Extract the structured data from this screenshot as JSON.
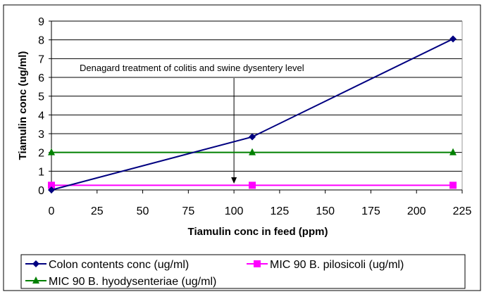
{
  "chart_data": {
    "type": "line",
    "title": "",
    "xlabel": "Tiamulin conc in feed (ppm)",
    "ylabel": "Tiamulin conc (ug/ml)",
    "xlim": [
      0,
      225
    ],
    "ylim": [
      0,
      9
    ],
    "xticks": [
      0,
      25,
      50,
      75,
      100,
      125,
      150,
      175,
      200,
      225
    ],
    "yticks": [
      0,
      1,
      2,
      3,
      4,
      5,
      6,
      7,
      8,
      9
    ],
    "grid": "horizontal",
    "legend_position": "bottom",
    "annotation": {
      "text": "Denagard treatment of colitis and swine dysentery level",
      "x": 100
    },
    "series": [
      {
        "name": "Colon contents conc (ug/ml)",
        "color": "#000080",
        "marker": "diamond",
        "x": [
          0,
          110,
          220
        ],
        "y": [
          0,
          2.83,
          8.05
        ]
      },
      {
        "name": "MIC 90 B. pilosicoli (ug/ml)",
        "color": "#FF00FF",
        "marker": "square",
        "x": [
          0,
          110,
          220
        ],
        "y": [
          0.25,
          0.25,
          0.25
        ]
      },
      {
        "name": "MIC 90 B. hyodysenteriae (ug/ml)",
        "color": "#008000",
        "marker": "triangle",
        "x": [
          0,
          110,
          220
        ],
        "y": [
          2,
          2,
          2
        ]
      }
    ]
  }
}
